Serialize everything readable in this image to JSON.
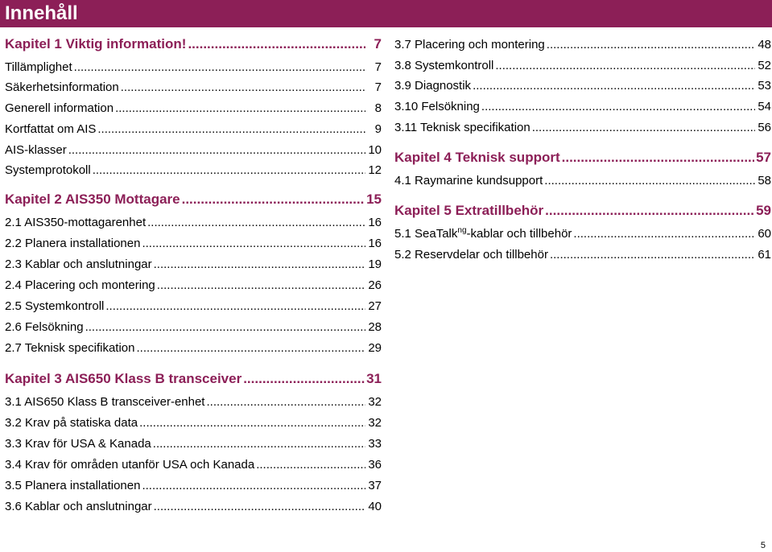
{
  "page_title": "Innehåll",
  "page_number": "5",
  "colors": {
    "accent": "#8c1f57",
    "title_text": "#ffffff"
  },
  "left_column": [
    {
      "type": "chapter",
      "label": "Kapitel 1 Viktig information!",
      "page": "7"
    },
    {
      "type": "item",
      "label": "Tillämplighet",
      "page": "7"
    },
    {
      "type": "item",
      "label": "Säkerhetsinformation",
      "page": "7"
    },
    {
      "type": "item",
      "label": "Generell information",
      "page": "8"
    },
    {
      "type": "item",
      "label": "Kortfattat om AIS",
      "page": "9"
    },
    {
      "type": "item",
      "label": "AIS-klasser",
      "page": "10"
    },
    {
      "type": "item",
      "label": "Systemprotokoll",
      "page": "12"
    },
    {
      "type": "chapter",
      "label": "Kapitel 2 AIS350 Mottagare",
      "page": "15"
    },
    {
      "type": "item",
      "label": "2.1 AIS350-mottagarenhet",
      "page": "16"
    },
    {
      "type": "item",
      "label": "2.2 Planera installationen",
      "page": "16"
    },
    {
      "type": "item",
      "label": "2.3 Kablar och anslutningar",
      "page": "19"
    },
    {
      "type": "item",
      "label": "2.4 Placering och montering",
      "page": "26"
    },
    {
      "type": "item",
      "label": "2.5 Systemkontroll",
      "page": "27"
    },
    {
      "type": "item",
      "label": "2.6 Felsökning",
      "page": "28"
    },
    {
      "type": "item",
      "label": "2.7 Teknisk specifikation",
      "page": "29"
    },
    {
      "type": "chapter",
      "label": "Kapitel 3 AIS650 Klass B transceiver",
      "page": "31"
    },
    {
      "type": "item",
      "label": "3.1 AIS650 Klass B transceiver-enhet",
      "page": "32"
    },
    {
      "type": "item",
      "label": "3.2 Krav på statiska data",
      "page": "32"
    },
    {
      "type": "item",
      "label": "3.3 Krav för USA & Kanada",
      "page": "33"
    },
    {
      "type": "item",
      "label": "3.4 Krav för områden utanför USA och Kanada",
      "page": "36"
    },
    {
      "type": "item",
      "label": "3.5 Planera installationen",
      "page": "37"
    },
    {
      "type": "item",
      "label": "3.6 Kablar och anslutningar",
      "page": "40"
    }
  ],
  "right_column": [
    {
      "type": "item",
      "label": "3.7 Placering och montering",
      "page": "48"
    },
    {
      "type": "item",
      "label": "3.8 Systemkontroll",
      "page": "52"
    },
    {
      "type": "item",
      "label": "3.9 Diagnostik",
      "page": "53"
    },
    {
      "type": "item",
      "label": "3.10 Felsökning",
      "page": "54"
    },
    {
      "type": "item",
      "label": "3.11 Teknisk specifikation",
      "page": "56"
    },
    {
      "type": "chapter",
      "label": "Kapitel 4 Teknisk support",
      "page": "57"
    },
    {
      "type": "item",
      "label": "4.1 Raymarine kundsupport",
      "page": "58"
    },
    {
      "type": "chapter",
      "label": "Kapitel 5 Extratillbehör",
      "page": "59"
    },
    {
      "type": "item",
      "label": "5.1 SeaTalk",
      "sup": "ng",
      "label_tail": "-kablar och tillbehör",
      "page": "60"
    },
    {
      "type": "item",
      "label": "5.2 Reservdelar och tillbehör",
      "page": "61"
    }
  ]
}
